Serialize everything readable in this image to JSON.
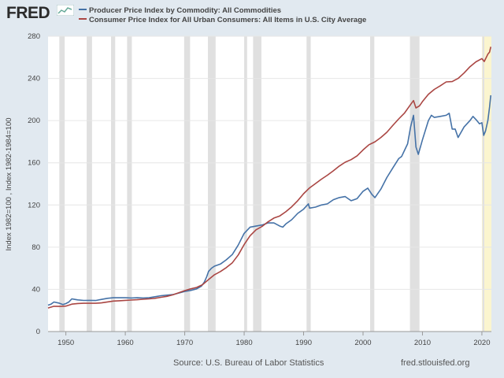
{
  "logo": {
    "text": "FRED"
  },
  "chart_data": {
    "type": "line",
    "title": "",
    "xlabel": "",
    "ylabel": "Index 1982=100 , Index 1982-1984=100",
    "xlim": [
      1947,
      2021.6
    ],
    "ylim": [
      0,
      280
    ],
    "xticks": [
      1950,
      1960,
      1970,
      1980,
      1990,
      2000,
      2010,
      2020
    ],
    "xtick_labels": [
      "1950",
      "1960",
      "1970",
      "1980",
      "1990",
      "2000",
      "2010",
      "2020"
    ],
    "yticks": [
      0,
      40,
      80,
      120,
      160,
      200,
      240,
      280
    ],
    "ytick_labels": [
      "0",
      "40",
      "80",
      "120",
      "160",
      "200",
      "240",
      "280"
    ],
    "grid": true,
    "legend_position": "top-left",
    "recessions": [
      [
        1948.9,
        1949.8
      ],
      [
        1953.5,
        1954.4
      ],
      [
        1957.6,
        1958.3
      ],
      [
        1960.3,
        1961.1
      ],
      [
        1969.9,
        1970.9
      ],
      [
        1973.9,
        1975.2
      ],
      [
        1980.0,
        1980.5
      ],
      [
        1981.5,
        1982.9
      ],
      [
        1990.5,
        1991.2
      ],
      [
        2001.2,
        2001.9
      ],
      [
        2007.9,
        2009.5
      ],
      [
        2020.1,
        2020.4
      ]
    ],
    "highlight_range": [
      2020.0,
      2021.6
    ],
    "series": [
      {
        "name": "Producer Price Index by Commodity: All Commodities",
        "color": "#4572a7",
        "x": [
          1947,
          1947.5,
          1948,
          1948.8,
          1949.5,
          1950,
          1950.5,
          1951,
          1951.5,
          1952,
          1953,
          1954,
          1955,
          1956,
          1957,
          1958,
          1959,
          1960,
          1961,
          1962,
          1963,
          1964,
          1965,
          1966,
          1967,
          1968,
          1969,
          1970,
          1971,
          1972,
          1972.8,
          1973.3,
          1973.7,
          1974,
          1974.5,
          1975,
          1976,
          1977,
          1978,
          1979,
          1980,
          1981,
          1982,
          1983,
          1984,
          1985,
          1986,
          1986.5,
          1987,
          1988,
          1989,
          1990,
          1990.8,
          1991,
          1992,
          1993,
          1994,
          1995,
          1996,
          1997,
          1998,
          1999,
          2000,
          2000.8,
          2001.5,
          2002,
          2003,
          2004,
          2005,
          2006,
          2006.5,
          2007,
          2007.5,
          2008,
          2008.5,
          2008.9,
          2009.3,
          2010,
          2011,
          2011.5,
          2012,
          2013,
          2014,
          2014.5,
          2015,
          2015.5,
          2016,
          2017,
          2018,
          2018.5,
          2019,
          2019.6,
          2020,
          2020.3,
          2020.6,
          2021,
          2021.3,
          2021.5
        ],
        "values": [
          25,
          26,
          28,
          27,
          25.5,
          26.5,
          28,
          31,
          30.5,
          30,
          29.5,
          29.6,
          29.4,
          30.5,
          31.5,
          32,
          32,
          32,
          31.8,
          32,
          31.8,
          32,
          33,
          34,
          34.5,
          35,
          36.5,
          38,
          39,
          40.5,
          43,
          47,
          52,
          57,
          60,
          62,
          64,
          68,
          73,
          82,
          93,
          99,
          100,
          101,
          103,
          103,
          100,
          99,
          102,
          106,
          112,
          116,
          121,
          117,
          118,
          120,
          121,
          125,
          127,
          128,
          124,
          126,
          133,
          136,
          130,
          127,
          135,
          146,
          155,
          164,
          166,
          172,
          178,
          194,
          205,
          175,
          168,
          182,
          200,
          205,
          203,
          204,
          205,
          207,
          192,
          192,
          184,
          194,
          200,
          204,
          201,
          197,
          198,
          186,
          190,
          200,
          213,
          224
        ]
      },
      {
        "name": "Consumer Price Index for All Urban Consumers: All Items in U.S. City Average",
        "color": "#aa4643",
        "x": [
          1947,
          1948,
          1949,
          1950,
          1951,
          1952,
          1953,
          1954,
          1955,
          1956,
          1957,
          1958,
          1959,
          1960,
          1961,
          1962,
          1963,
          1964,
          1965,
          1966,
          1967,
          1968,
          1969,
          1970,
          1971,
          1972,
          1973,
          1974,
          1975,
          1976,
          1977,
          1978,
          1979,
          1980,
          1981,
          1982,
          1983,
          1984,
          1985,
          1986,
          1987,
          1988,
          1989,
          1990,
          1991,
          1992,
          1993,
          1994,
          1995,
          1996,
          1997,
          1998,
          1999,
          2000,
          2001,
          2002,
          2003,
          2004,
          2005,
          2006,
          2007,
          2008,
          2008.5,
          2008.9,
          2009.5,
          2010,
          2011,
          2012,
          2013,
          2014,
          2015,
          2016,
          2017,
          2018,
          2019,
          2020,
          2020.4,
          2021,
          2021.3,
          2021.5
        ],
        "values": [
          22.3,
          24.0,
          23.8,
          24.1,
          26.0,
          26.6,
          26.8,
          26.9,
          26.8,
          27.2,
          28.1,
          28.9,
          29.2,
          29.6,
          29.9,
          30.2,
          30.6,
          31.0,
          31.5,
          32.5,
          33.4,
          34.8,
          36.7,
          38.8,
          40.5,
          41.8,
          44.4,
          49.3,
          53.8,
          56.9,
          60.6,
          65.2,
          72.6,
          82.4,
          90.9,
          96.5,
          99.6,
          103.9,
          107.6,
          109.6,
          113.6,
          118.3,
          124.0,
          130.7,
          136.2,
          140.3,
          144.5,
          148.2,
          152.4,
          156.9,
          160.5,
          163.0,
          166.6,
          172.2,
          177.1,
          179.9,
          184.0,
          188.9,
          195.3,
          201.6,
          207.3,
          215.3,
          219,
          212,
          214,
          218.1,
          224.9,
          229.6,
          233.0,
          236.7,
          237.0,
          240.0,
          245.1,
          251.1,
          255.7,
          258.8,
          256,
          263,
          265,
          270
        ]
      }
    ]
  },
  "footer": {
    "source": "Source: U.S. Bureau of Labor Statistics",
    "site": "fred.stlouisfed.org"
  }
}
